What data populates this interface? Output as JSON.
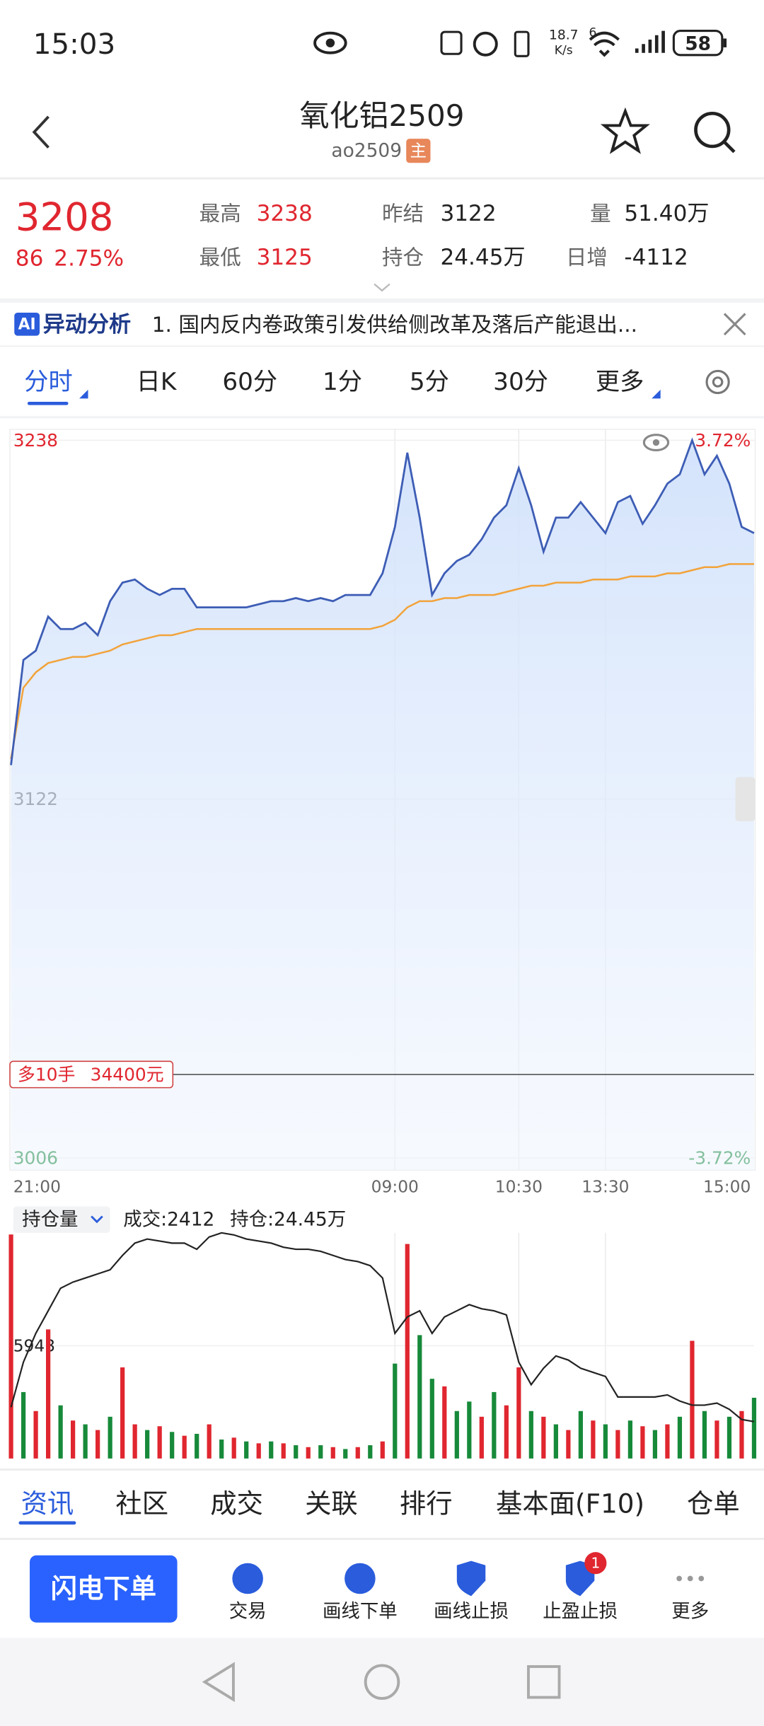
{
  "status_bar": {
    "time": "15:03",
    "net_speed": "18.7",
    "net_unit": "K/s",
    "signal": "6",
    "battery": "58"
  },
  "header": {
    "title": "氧化铝2509",
    "code": "ao2509",
    "badge": "主"
  },
  "quote": {
    "price": "3208",
    "change": "86",
    "change_pct": "2.75%",
    "high_label": "最高",
    "high": "3238",
    "low_label": "最低",
    "low": "3125",
    "prev_label": "昨结",
    "prev": "3122",
    "oi_label": "持仓",
    "oi": "24.45万",
    "vol_label": "量",
    "vol": "51.40万",
    "daily_label": "日增",
    "daily": "-4112"
  },
  "ai_banner": {
    "badge": "AI",
    "title": "异动分析",
    "text": "1. 国内反内卷政策引发供给侧改革及落后产能退出..."
  },
  "tabs": [
    "分时",
    "日K",
    "60分",
    "1分",
    "5分",
    "30分",
    "更多"
  ],
  "chart": {
    "type": "line",
    "ylim": [
      3006,
      3238
    ],
    "yticks": [
      3238,
      3122,
      3006
    ],
    "pct_labels": [
      "3.72%",
      "-3.72%"
    ],
    "xlim": [
      0,
      60
    ],
    "xticks": [
      {
        "value": 0,
        "label": "21:00"
      },
      {
        "value": 31,
        "label": "09:00"
      },
      {
        "value": 41,
        "label": "10:30"
      },
      {
        "value": 48,
        "label": "13:30"
      },
      {
        "value": 60,
        "label": "15:00"
      }
    ],
    "price": {
      "color": "#3d5db5",
      "values": [
        3133,
        3167,
        3170,
        3181,
        3177,
        3177,
        3179,
        3175,
        3186,
        3192,
        3193,
        3190,
        3188,
        3190,
        3190,
        3184,
        3184,
        3184,
        3184,
        3184,
        3185,
        3186,
        3186,
        3187,
        3186,
        3187,
        3186,
        3188,
        3188,
        3188,
        3195,
        3210,
        3234,
        3213,
        3188,
        3195,
        3199,
        3201,
        3206,
        3213,
        3217,
        3229,
        3217,
        3202,
        3213,
        3213,
        3218,
        3213,
        3208,
        3218,
        3220,
        3211,
        3217,
        3224,
        3227,
        3238,
        3227,
        3233,
        3224,
        3210,
        3208
      ]
    },
    "average": {
      "color": "#f2a33a",
      "values": [
        3135,
        3158,
        3163,
        3166,
        3167,
        3168,
        3168,
        3169,
        3170,
        3172,
        3173,
        3174,
        3175,
        3175,
        3176,
        3177,
        3177,
        3177,
        3177,
        3177,
        3177,
        3177,
        3177,
        3177,
        3177,
        3177,
        3177,
        3177,
        3177,
        3177,
        3178,
        3180,
        3184,
        3186,
        3186,
        3187,
        3187,
        3188,
        3188,
        3188,
        3189,
        3190,
        3191,
        3191,
        3192,
        3192,
        3192,
        3193,
        3193,
        3193,
        3194,
        3194,
        3194,
        3195,
        3195,
        3196,
        3197,
        3197,
        3198,
        3198,
        3198
      ]
    },
    "position": {
      "label": "多10手",
      "amount": "34400元",
      "price": 3033
    }
  },
  "subchart": {
    "selector": "持仓量",
    "turnover": "成交:2412",
    "open_interest": "持仓:24.45万",
    "ylim": [
      0,
      11886
    ],
    "yticks": [
      5943
    ],
    "volume": {
      "values": [
        11800,
        3500,
        2500,
        6800,
        2800,
        2000,
        1800,
        1500,
        2200,
        4800,
        1800,
        1500,
        1700,
        1400,
        1200,
        1300,
        1800,
        1000,
        1100,
        900,
        800,
        900,
        800,
        700,
        600,
        700,
        600,
        500,
        600,
        700,
        900,
        5000,
        11300,
        6500,
        4200,
        3800,
        2500,
        3000,
        2200,
        3500,
        2800,
        4800,
        2500,
        2200,
        1800,
        1500,
        2500,
        2000,
        1800,
        1500,
        2000,
        1700,
        1500,
        1800,
        2200,
        6200,
        2500,
        2000,
        2200,
        2500,
        3200
      ],
      "colors": [
        "#e0262f",
        "#178a3a",
        "#e0262f",
        "#e0262f",
        "#178a3a",
        "#e0262f",
        "#178a3a",
        "#e0262f",
        "#178a3a",
        "#e0262f",
        "#e0262f",
        "#178a3a",
        "#e0262f",
        "#178a3a",
        "#e0262f",
        "#178a3a",
        "#e0262f",
        "#178a3a",
        "#e0262f",
        "#178a3a",
        "#e0262f",
        "#178a3a",
        "#e0262f",
        "#178a3a",
        "#e0262f",
        "#178a3a",
        "#e0262f",
        "#178a3a",
        "#e0262f",
        "#178a3a",
        "#e0262f",
        "#178a3a",
        "#e0262f",
        "#178a3a",
        "#178a3a",
        "#e0262f",
        "#178a3a",
        "#178a3a",
        "#e0262f",
        "#178a3a",
        "#e0262f",
        "#e0262f",
        "#178a3a",
        "#e0262f",
        "#178a3a",
        "#e0262f",
        "#178a3a",
        "#e0262f",
        "#178a3a",
        "#e0262f",
        "#178a3a",
        "#e0262f",
        "#178a3a",
        "#e0262f",
        "#178a3a",
        "#e0262f",
        "#178a3a",
        "#e0262f",
        "#178a3a",
        "#e0262f",
        "#178a3a"
      ]
    },
    "oi": {
      "color": "#222222",
      "ylim": [
        24.3,
        25.4
      ],
      "values": [
        24.55,
        24.77,
        24.91,
        25.02,
        25.13,
        25.16,
        25.18,
        25.2,
        25.22,
        25.29,
        25.35,
        25.37,
        25.36,
        25.35,
        25.35,
        25.32,
        25.38,
        25.4,
        25.39,
        25.37,
        25.36,
        25.35,
        25.33,
        25.32,
        25.32,
        25.31,
        25.29,
        25.27,
        25.26,
        25.24,
        25.18,
        24.91,
        24.99,
        25.02,
        24.91,
        24.99,
        25.02,
        25.05,
        25.03,
        25.02,
        25.0,
        24.77,
        24.66,
        24.74,
        24.8,
        24.78,
        24.74,
        24.72,
        24.7,
        24.6,
        24.6,
        24.6,
        24.6,
        24.61,
        24.58,
        24.56,
        24.56,
        24.57,
        24.54,
        24.49,
        24.48
      ]
    }
  },
  "bottom_tabs": [
    "资讯",
    "社区",
    "成交",
    "关联",
    "排行",
    "基本面(F10)",
    "仓单"
  ],
  "action_bar": {
    "primary": "闪电下单",
    "items": [
      "交易",
      "画线下单",
      "画线止损",
      "止盈止损",
      "更多"
    ],
    "badge": "1"
  }
}
